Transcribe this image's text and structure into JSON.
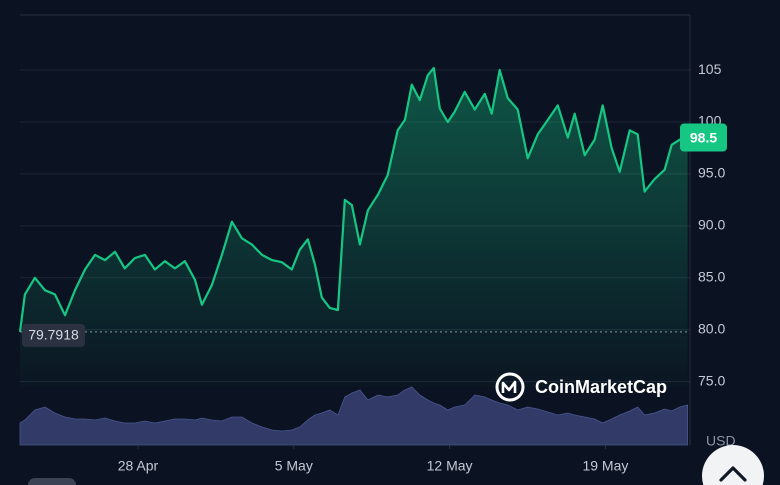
{
  "chart_data": {
    "type": "area",
    "axis_label": "USD",
    "watermark": "CoinMarketCap",
    "color": "#16c784",
    "xlim": [
      112.7,
      142.8
    ],
    "xticks": [
      {
        "value": 118,
        "label": "28 Apr"
      },
      {
        "value": 125,
        "label": "5 May"
      },
      {
        "value": 132,
        "label": "12 May"
      },
      {
        "value": 139,
        "label": "19 May"
      }
    ],
    "ylim": [
      68.9,
      110.3
    ],
    "yticks": [
      {
        "value": 75,
        "label": "75.0"
      },
      {
        "value": 80,
        "label": "80.0"
      },
      {
        "value": 85,
        "label": "85.0"
      },
      {
        "value": 90,
        "label": "90.0"
      },
      {
        "value": 95,
        "label": "95.0"
      },
      100,
      105
    ],
    "grid": true,
    "x": [
      112.7,
      112.92,
      113.37,
      113.82,
      114.27,
      114.72,
      115.17,
      115.62,
      116.07,
      116.52,
      116.97,
      117.41,
      117.86,
      118.31,
      118.76,
      119.21,
      119.66,
      120.11,
      120.56,
      120.87,
      121.32,
      121.77,
      122.22,
      122.67,
      123.12,
      123.57,
      124.02,
      124.46,
      124.91,
      125.27,
      125.63,
      125.95,
      126.26,
      126.62,
      126.98,
      127.29,
      127.61,
      127.97,
      128.33,
      128.78,
      129.22,
      129.67,
      129.99,
      130.3,
      130.66,
      131.02,
      131.29,
      131.56,
      131.92,
      132.23,
      132.68,
      133.13,
      133.58,
      133.89,
      134.25,
      134.61,
      135.06,
      135.51,
      135.96,
      136.41,
      136.86,
      137.31,
      137.62,
      138.07,
      138.52,
      138.88,
      139.28,
      139.64,
      140.09,
      140.45,
      140.76,
      141.21,
      141.66,
      141.98,
      142.34,
      142.69
    ],
    "values": [
      79.7918,
      83.4,
      85.0,
      83.8,
      83.4,
      81.4,
      83.8,
      85.8,
      87.2,
      86.7,
      87.5,
      85.9,
      86.9,
      87.2,
      85.8,
      86.6,
      85.9,
      86.6,
      84.8,
      82.4,
      84.3,
      87.2,
      90.4,
      88.8,
      88.2,
      87.2,
      86.7,
      86.5,
      85.8,
      87.7,
      88.7,
      86.3,
      83.1,
      82.1,
      81.9,
      92.5,
      92.0,
      88.2,
      91.5,
      93.0,
      94.9,
      99.2,
      100.2,
      103.6,
      102.1,
      104.5,
      105.2,
      101.3,
      100.0,
      101.0,
      102.9,
      101.2,
      102.7,
      100.8,
      105.0,
      102.3,
      101.2,
      96.5,
      98.8,
      100.2,
      101.6,
      98.5,
      100.8,
      96.8,
      98.3,
      101.6,
      97.5,
      95.2,
      99.2,
      98.8,
      93.3,
      94.5,
      95.4,
      97.8,
      98.3,
      98.5
    ],
    "volume": {
      "color": "#323b68",
      "values": [
        22,
        25,
        35,
        38,
        32,
        28,
        26,
        26,
        25,
        27,
        24,
        22,
        22,
        24,
        22,
        24,
        26,
        26,
        25,
        27,
        25,
        24,
        28,
        28,
        22,
        18,
        15,
        14,
        15,
        18,
        25,
        30,
        32,
        35,
        30,
        48,
        52,
        55,
        45,
        50,
        48,
        50,
        55,
        58,
        50,
        45,
        42,
        40,
        35,
        38,
        40,
        50,
        48,
        45,
        42,
        40,
        35,
        38,
        36,
        33,
        30,
        32,
        30,
        28,
        26,
        22,
        26,
        30,
        34,
        38,
        30,
        32,
        36,
        34,
        38,
        40
      ]
    }
  }
}
